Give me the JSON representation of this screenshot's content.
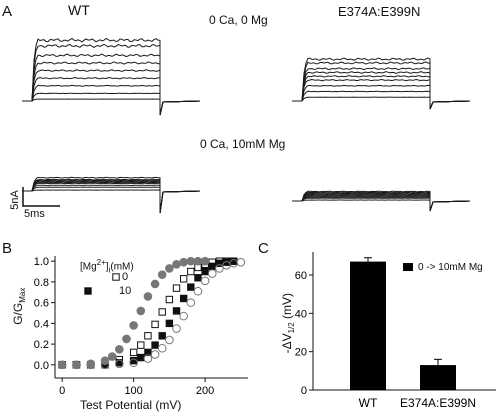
{
  "panel_a": {
    "letter": "A",
    "wt_label": "WT",
    "mutant_label": "E374A:E399N",
    "cond_top": "0 Ca, 0 Mg",
    "cond_bottom": "0 Ca, 10mM Mg",
    "scale_current": "5nA",
    "scale_time": "5ms"
  },
  "panel_b": {
    "letter": "B",
    "ylabel_main": "G/G",
    "ylabel_sub": "Max",
    "xlabel": "Test Potential (mV)",
    "legend_title_pre": "[Mg",
    "legend_title_sup": "2+",
    "legend_title_post": "]",
    "legend_title_sub": "i",
    "legend_title_unit": "(mM)",
    "legend_items": [
      {
        "value": "0",
        "marker": "open-square"
      },
      {
        "value": "10",
        "marker": "filled-square"
      }
    ]
  },
  "panel_c": {
    "letter": "C",
    "ylabel_pre": "-ΔV",
    "ylabel_sub": "1/2",
    "ylabel_post": " (mV)",
    "legend": "0 -> 10mM Mg"
  },
  "chart_data": [
    {
      "type": "scatter",
      "xlabel": "Test Potential (mV)",
      "ylabel": "G/GMax",
      "xlim": [
        -10,
        260
      ],
      "ylim": [
        -0.05,
        1.05
      ],
      "x_ticks": [
        "0",
        "100",
        "200"
      ],
      "y_ticks": [
        "0.0",
        "0.2",
        "0.4",
        "0.6",
        "0.8",
        "1.0"
      ],
      "series": [
        {
          "name": "WT 0 Mg (open square)",
          "marker": "open-square",
          "color": "#111111",
          "x": [
            0,
            20,
            40,
            60,
            80,
            100,
            110,
            120,
            130,
            140,
            150,
            160,
            170,
            180,
            190,
            200,
            210,
            220,
            230,
            240
          ],
          "y": [
            0,
            0,
            0,
            0.02,
            0.05,
            0.12,
            0.19,
            0.28,
            0.39,
            0.51,
            0.63,
            0.74,
            0.83,
            0.9,
            0.94,
            0.97,
            0.99,
            1.0,
            1.0,
            1.0
          ]
        },
        {
          "name": "WT 10 Mg (filled square)",
          "marker": "filled-square",
          "color": "#111111",
          "x": [
            0,
            20,
            40,
            60,
            80,
            100,
            110,
            120,
            130,
            140,
            150,
            160,
            170,
            180,
            190,
            200,
            210,
            220,
            230,
            240
          ],
          "y": [
            0,
            0,
            0,
            0,
            0.02,
            0.04,
            0.07,
            0.12,
            0.19,
            0.28,
            0.4,
            0.52,
            0.64,
            0.75,
            0.84,
            0.9,
            0.95,
            0.98,
            0.99,
            1.0
          ]
        },
        {
          "name": "E374A:E399N 0 Mg (filled circle)",
          "marker": "filled-circle",
          "color": "#777777",
          "x": [
            0,
            20,
            40,
            60,
            70,
            80,
            90,
            100,
            110,
            120,
            130,
            140,
            150,
            160,
            170,
            180,
            190,
            200
          ],
          "y": [
            0,
            0,
            0.01,
            0.04,
            0.08,
            0.15,
            0.25,
            0.38,
            0.52,
            0.66,
            0.78,
            0.87,
            0.93,
            0.97,
            0.99,
            1.0,
            1.0,
            1.0
          ]
        },
        {
          "name": "E374A:E399N 10 Mg (open circle)",
          "marker": "open-circle",
          "color": "#777777",
          "x": [
            0,
            20,
            40,
            60,
            80,
            100,
            120,
            130,
            140,
            150,
            160,
            170,
            180,
            190,
            200,
            210,
            220,
            230,
            240,
            250
          ],
          "y": [
            0,
            0,
            0,
            0,
            0.01,
            0.02,
            0.06,
            0.1,
            0.16,
            0.24,
            0.35,
            0.47,
            0.6,
            0.71,
            0.81,
            0.88,
            0.93,
            0.96,
            0.98,
            0.99
          ]
        }
      ]
    },
    {
      "type": "bar",
      "categories": [
        "WT",
        "E374A:E399N"
      ],
      "series": [
        {
          "name": "0 -> 10mM Mg",
          "values": [
            67,
            13
          ],
          "errors": [
            2,
            3
          ]
        }
      ],
      "ylabel": "-ΔV1/2 (mV)",
      "ylim": [
        0,
        72
      ],
      "y_ticks": [
        "0",
        "20",
        "40",
        "60"
      ]
    }
  ]
}
